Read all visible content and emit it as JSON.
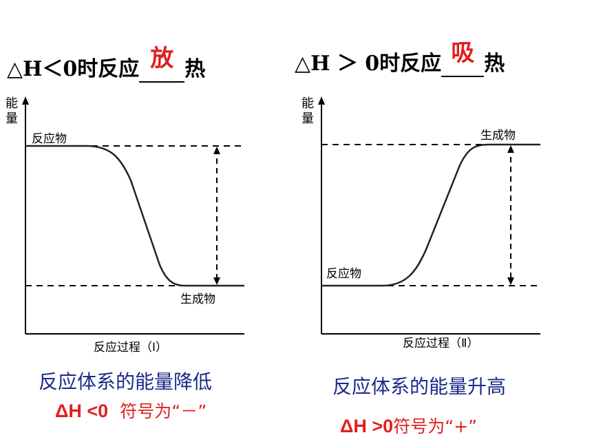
{
  "left_panel": {
    "title_prefix": "△H＜0时反应",
    "title_answer": "放",
    "title_suffix": "热",
    "axis_y": [
      "能",
      "量"
    ],
    "reactant_label": "反应物",
    "product_label": "生成物",
    "axis_x": "反应过程（Ⅰ）",
    "caption": "反应体系的能量降低",
    "dh_text": "ΔH <0",
    "sign_text": "符号为“－”"
  },
  "right_panel": {
    "title_prefix": "△H ＞ 0时反应",
    "title_answer": "吸",
    "title_suffix": "热",
    "axis_y": [
      "能",
      "量"
    ],
    "reactant_label": "反应物",
    "product_label": "生成物",
    "axis_x": "反应过程（Ⅱ）",
    "caption": "反应体系的能量升高",
    "dh_text": "ΔH >0",
    "sign_text": "符号为“+”"
  },
  "colors": {
    "answer": "#e0201e",
    "caption": "#1a2a8a",
    "line": "#000000"
  }
}
